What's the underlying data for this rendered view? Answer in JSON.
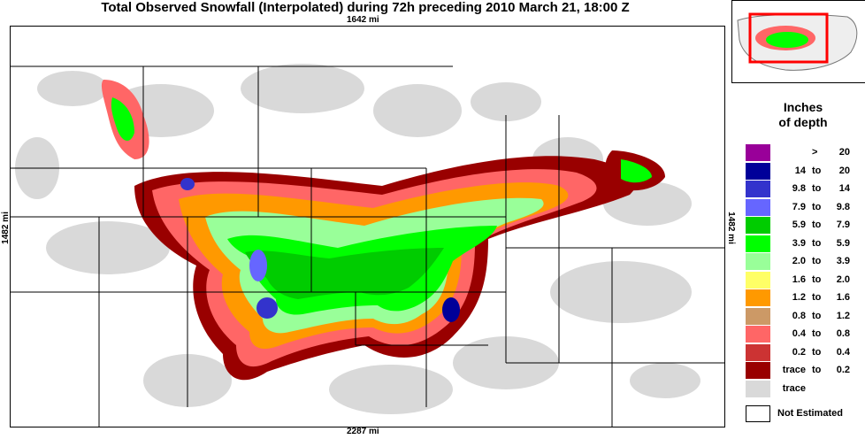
{
  "title": "Total Observed Snowfall (Interpolated) during 72h preceding 2010 March 21, 18:00 Z",
  "dimensions": {
    "top": "1642 mi",
    "bottom": "2287 mi",
    "left": "1482 mi",
    "right": "1482 mi"
  },
  "legend": {
    "title_line1": "Inches",
    "title_line2": "of depth",
    "items": [
      {
        "lo": "",
        "to": ">",
        "hi": "20",
        "color": "#990099"
      },
      {
        "lo": "14",
        "to": "to",
        "hi": "20",
        "color": "#000099"
      },
      {
        "lo": "9.8",
        "to": "to",
        "hi": "14",
        "color": "#3333cc"
      },
      {
        "lo": "7.9",
        "to": "to",
        "hi": "9.8",
        "color": "#6666ff"
      },
      {
        "lo": "5.9",
        "to": "to",
        "hi": "7.9",
        "color": "#00cc00"
      },
      {
        "lo": "3.9",
        "to": "to",
        "hi": "5.9",
        "color": "#00ff00"
      },
      {
        "lo": "2.0",
        "to": "to",
        "hi": "3.9",
        "color": "#99ff99"
      },
      {
        "lo": "1.6",
        "to": "to",
        "hi": "2.0",
        "color": "#ffff66"
      },
      {
        "lo": "1.2",
        "to": "to",
        "hi": "1.6",
        "color": "#ff9900"
      },
      {
        "lo": "0.8",
        "to": "to",
        "hi": "1.2",
        "color": "#cc9966"
      },
      {
        "lo": "0.4",
        "to": "to",
        "hi": "0.8",
        "color": "#ff6666"
      },
      {
        "lo": "0.2",
        "to": "to",
        "hi": "0.4",
        "color": "#cc3333"
      },
      {
        "lo": "trace",
        "to": "to",
        "hi": "0.2",
        "color": "#990000"
      },
      {
        "lo": "trace",
        "to": "",
        "hi": "",
        "color": "#d9d9d9"
      }
    ],
    "not_estimated": "Not Estimated"
  }
}
